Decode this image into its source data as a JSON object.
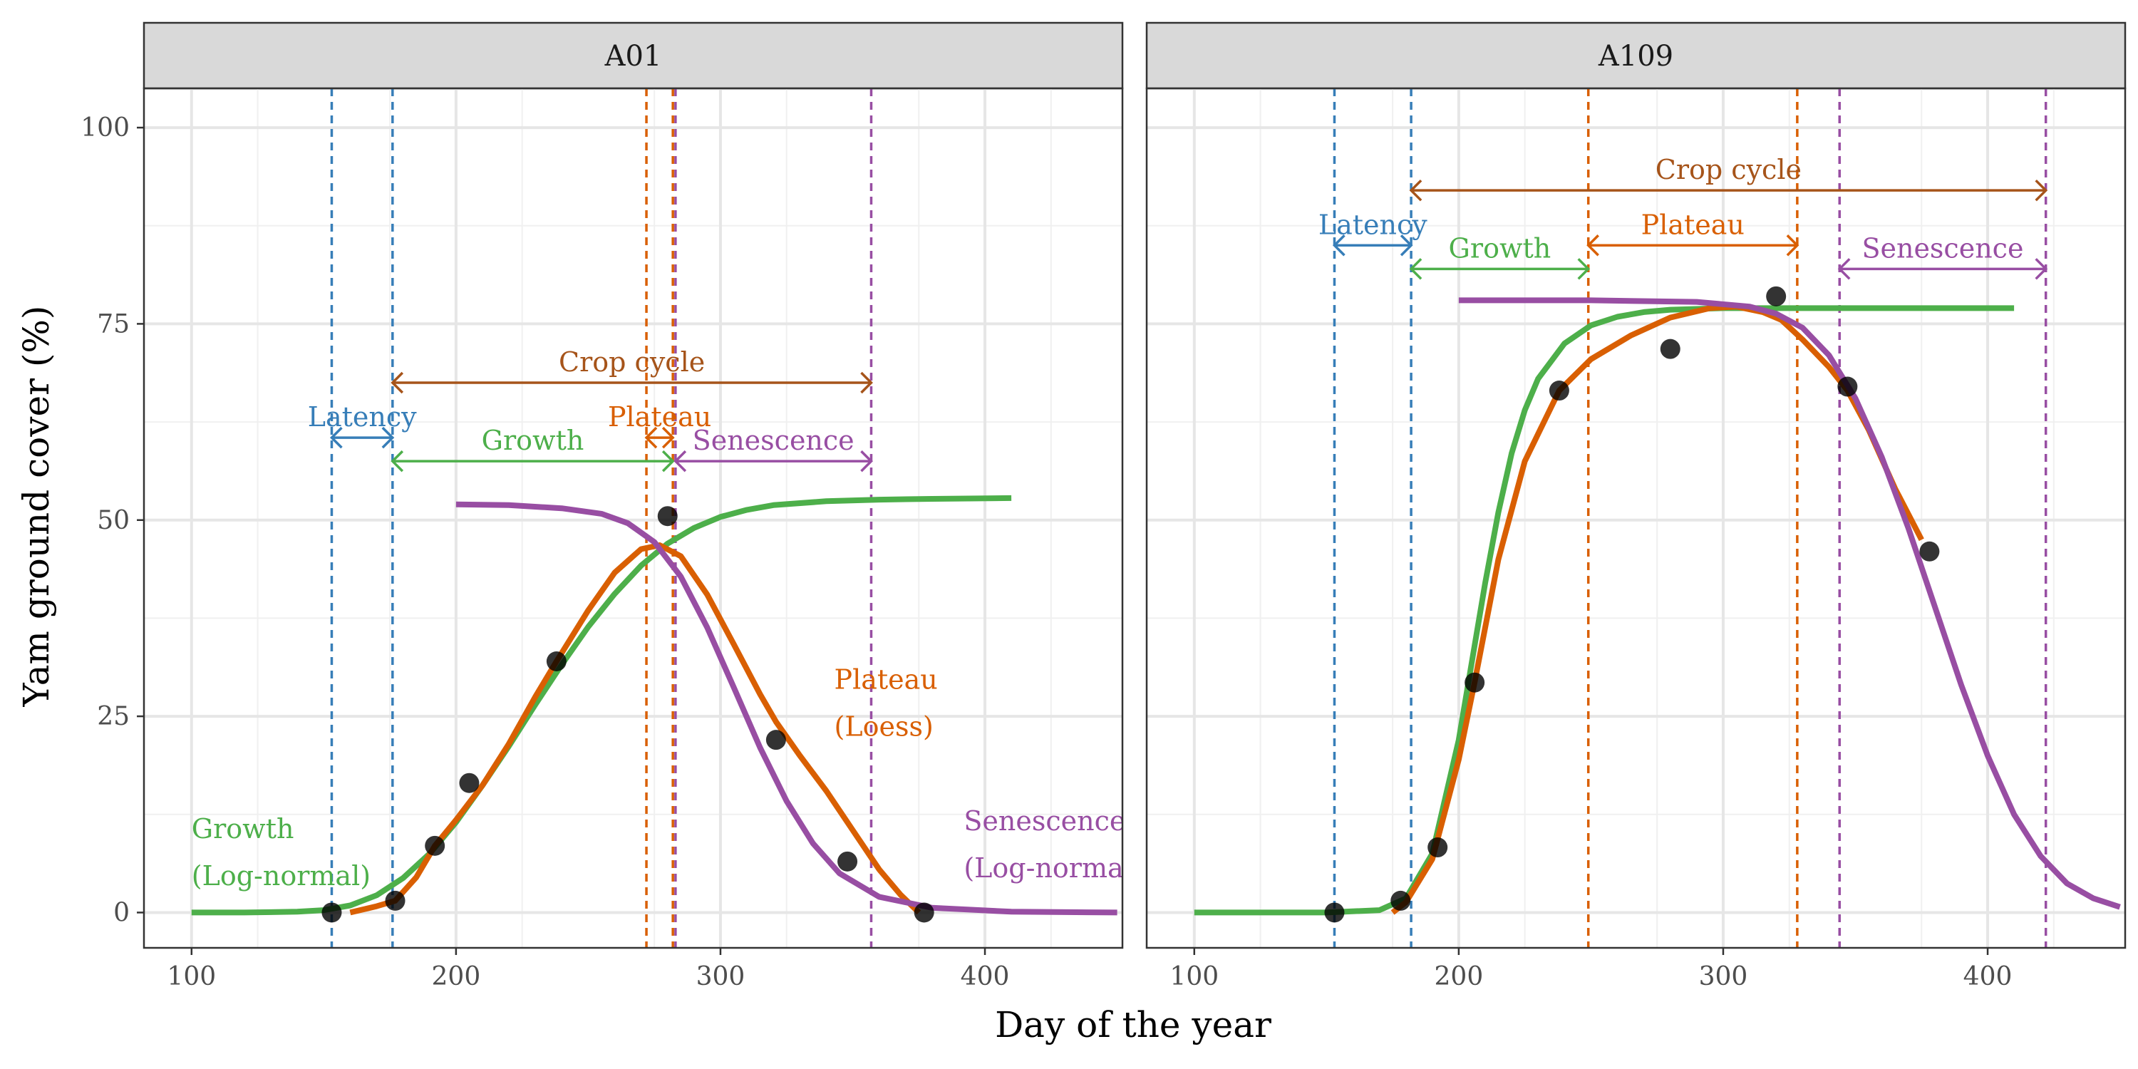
{
  "chart_data": {
    "type": "line",
    "xlabel": "Day of the year",
    "ylabel": "Yam ground cover (%)",
    "xlim": [
      82,
      452
    ],
    "ylim": [
      -4.5,
      105
    ],
    "x_ticks": [
      "100",
      "200",
      "300",
      "400"
    ],
    "y_ticks": [
      "0",
      "25",
      "50",
      "75",
      "100"
    ],
    "grid": true,
    "colors": {
      "growth": "#4daf4a",
      "plateau": "#d95f02",
      "senescence": "#984ea3",
      "latency": "#377eb8",
      "crop_cycle": "#a6541a",
      "points": "#000000",
      "strip_bg": "#d9d9d9"
    },
    "panels": [
      {
        "title": "A01",
        "points": [
          {
            "x": 153,
            "y": 0
          },
          {
            "x": 177,
            "y": 1.5
          },
          {
            "x": 192,
            "y": 8.5
          },
          {
            "x": 205,
            "y": 16.5
          },
          {
            "x": 238,
            "y": 32
          },
          {
            "x": 280,
            "y": 50.5
          },
          {
            "x": 321,
            "y": 22
          },
          {
            "x": 348,
            "y": 6.5
          },
          {
            "x": 377,
            "y": 0
          }
        ],
        "vlines": [
          {
            "x": 153,
            "color": "latency"
          },
          {
            "x": 176,
            "color": "latency"
          },
          {
            "x": 272,
            "color": "plateau"
          },
          {
            "x": 282,
            "color": "plateau"
          },
          {
            "x": 283,
            "color": "senescence"
          },
          {
            "x": 357,
            "color": "senescence"
          }
        ],
        "growth_curve": {
          "x": [
            100,
            120,
            140,
            150,
            160,
            170,
            180,
            190,
            200,
            210,
            220,
            230,
            240,
            250,
            260,
            270,
            280,
            290,
            300,
            310,
            320,
            340,
            360,
            380,
            410
          ],
          "y": [
            0,
            0,
            0.1,
            0.3,
            0.9,
            2.2,
            4.4,
            7.5,
            11.5,
            16.2,
            21.2,
            26.5,
            31.6,
            36.4,
            40.6,
            44.2,
            47.0,
            49.0,
            50.4,
            51.3,
            51.9,
            52.4,
            52.6,
            52.7,
            52.8
          ]
        },
        "plateau_curve": {
          "x": [
            160,
            170,
            177,
            185,
            192,
            200,
            210,
            220,
            230,
            238,
            250,
            260,
            270,
            277,
            285,
            295,
            305,
            315,
            321,
            330,
            340,
            350,
            360,
            368,
            375
          ],
          "y": [
            0,
            0.8,
            1.5,
            4.5,
            8.5,
            11.8,
            16.2,
            21.5,
            27.5,
            32.0,
            38.5,
            43.3,
            46.3,
            46.8,
            45.4,
            40.5,
            34.2,
            27.8,
            24.3,
            20.0,
            15.5,
            10.5,
            5.5,
            2.3,
            0
          ]
        },
        "senescence_curve": {
          "x": [
            200,
            220,
            240,
            255,
            265,
            275,
            285,
            295,
            305,
            315,
            325,
            335,
            345,
            360,
            380,
            410,
            450
          ],
          "y": [
            52.0,
            51.9,
            51.5,
            50.8,
            49.6,
            47.2,
            42.8,
            36.3,
            28.7,
            21.0,
            14.2,
            8.8,
            5.0,
            2.0,
            0.6,
            0.1,
            0
          ]
        },
        "intervals": [
          {
            "label": "Crop cycle",
            "from": 176,
            "to": 357,
            "y": 67.5,
            "color": "crop_cycle"
          },
          {
            "label": "Latency",
            "from": 153,
            "to": 176,
            "y": 60.5,
            "color": "latency"
          },
          {
            "label": "Plateau",
            "from": 272,
            "to": 282,
            "y": 60.5,
            "color": "plateau"
          },
          {
            "label": "Growth",
            "from": 176,
            "to": 282,
            "y": 57.5,
            "color": "growth"
          },
          {
            "label": "Senescence",
            "from": 283,
            "to": 357,
            "y": 57.5,
            "color": "senescence"
          }
        ],
        "curve_labels": [
          {
            "lines": [
              "Growth",
              "(Log-normal)"
            ],
            "x": 100,
            "y": 9.5,
            "y2": 3.5,
            "color": "growth"
          },
          {
            "lines": [
              "Plateau",
              "(Loess)"
            ],
            "x": 343,
            "y": 28.5,
            "y2": 22.5,
            "color": "plateau"
          },
          {
            "lines": [
              "Senescence",
              "(Log-normal)"
            ],
            "x": 392,
            "y": 10.5,
            "y2": 4.5,
            "color": "senescence"
          }
        ]
      },
      {
        "title": "A109",
        "points": [
          {
            "x": 153,
            "y": 0
          },
          {
            "x": 178,
            "y": 1.5
          },
          {
            "x": 192,
            "y": 8.3
          },
          {
            "x": 206,
            "y": 29.3
          },
          {
            "x": 238,
            "y": 66.5
          },
          {
            "x": 280,
            "y": 71.8
          },
          {
            "x": 320,
            "y": 78.5
          },
          {
            "x": 347,
            "y": 67
          },
          {
            "x": 378,
            "y": 46
          }
        ],
        "vlines": [
          {
            "x": 153,
            "color": "latency"
          },
          {
            "x": 182,
            "color": "latency"
          },
          {
            "x": 249,
            "color": "plateau"
          },
          {
            "x": 328,
            "color": "plateau"
          },
          {
            "x": 344,
            "color": "senescence"
          },
          {
            "x": 422,
            "color": "senescence"
          }
        ],
        "growth_curve": {
          "x": [
            100,
            150,
            170,
            180,
            190,
            200,
            205,
            210,
            215,
            220,
            225,
            230,
            240,
            250,
            260,
            270,
            280,
            290,
            300,
            320,
            350,
            380,
            410
          ],
          "y": [
            0,
            0,
            0.3,
            1.8,
            7.5,
            22.0,
            32.0,
            42.0,
            51.0,
            58.5,
            64.0,
            68.0,
            72.5,
            74.8,
            75.9,
            76.5,
            76.8,
            76.9,
            77.0,
            77.0,
            77.0,
            77.0,
            77.0
          ]
        },
        "plateau_curve": {
          "x": [
            175,
            180,
            190,
            200,
            206,
            215,
            225,
            238,
            250,
            265,
            280,
            295,
            305,
            315,
            322,
            330,
            340,
            347,
            355,
            365,
            375
          ],
          "y": [
            0,
            1.3,
            6.8,
            19.5,
            29.3,
            45.0,
            57.5,
            66.5,
            70.5,
            73.5,
            75.8,
            77.0,
            77.2,
            76.5,
            75.5,
            73.0,
            69.5,
            66.5,
            61.5,
            54.0,
            47.5
          ]
        },
        "senescence_curve": {
          "x": [
            200,
            250,
            290,
            310,
            320,
            330,
            340,
            350,
            360,
            370,
            380,
            390,
            400,
            410,
            420,
            430,
            440,
            450
          ],
          "y": [
            78.0,
            78.0,
            77.8,
            77.2,
            76.3,
            74.5,
            71.0,
            65.5,
            58.0,
            49.0,
            39.0,
            29.0,
            20.0,
            12.5,
            7.2,
            3.7,
            1.8,
            0.7
          ]
        },
        "intervals": [
          {
            "label": "Crop cycle",
            "from": 182,
            "to": 422,
            "y": 92,
            "color": "crop_cycle"
          },
          {
            "label": "Latency",
            "from": 153,
            "to": 182,
            "y": 85,
            "color": "latency"
          },
          {
            "label": "Plateau",
            "from": 249,
            "to": 328,
            "y": 85,
            "color": "plateau"
          },
          {
            "label": "Growth",
            "from": 182,
            "to": 249,
            "y": 82,
            "color": "growth"
          },
          {
            "label": "Senescence",
            "from": 344,
            "to": 422,
            "y": 82,
            "color": "senescence"
          }
        ],
        "curve_labels": []
      }
    ]
  }
}
